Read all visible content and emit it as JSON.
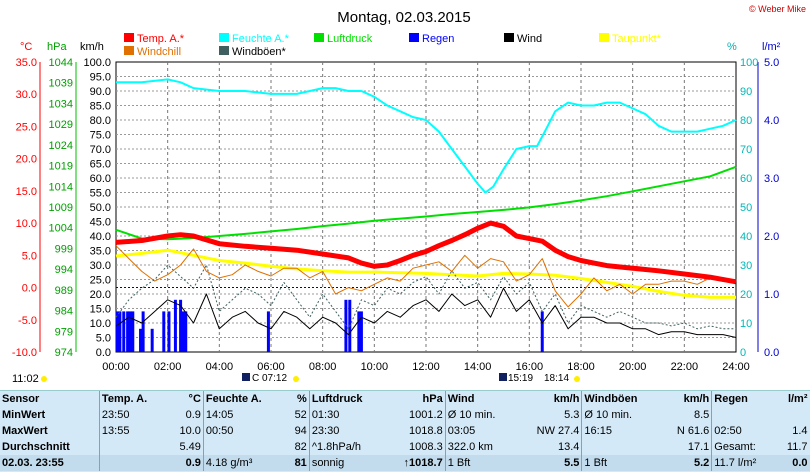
{
  "title": "Montag, 02.03.2015",
  "copyright": "© Weber Mike",
  "legend": [
    {
      "label": "Temp. A.*",
      "color": "#ff0000",
      "row": 0,
      "col": 0
    },
    {
      "label": "Feuchte A.*",
      "color": "#00ffff",
      "row": 0,
      "col": 1
    },
    {
      "label": "Luftdruck",
      "color": "#00e000",
      "row": 0,
      "col": 2
    },
    {
      "label": "Regen",
      "color": "#0000ff",
      "row": 0,
      "col": 3
    },
    {
      "label": "Wind",
      "color": "#000000",
      "row": 0,
      "col": 4
    },
    {
      "label": "Taupunkt*",
      "color": "#ffff00",
      "row": 0,
      "col": 5
    },
    {
      "label": "Windchill",
      "color": "#e07000",
      "row": 1,
      "col": 0
    },
    {
      "label": "Windböen*",
      "color": "#406060",
      "row": 1,
      "col": 1
    }
  ],
  "axis_units": {
    "temp": "°C",
    "pressure": "hPa",
    "wind": "km/h",
    "humidity": "%",
    "rain": "l/m²"
  },
  "sun_info": {
    "sunrise_label": "11:02",
    "marker1": "C 07:12",
    "marker2": "15:19",
    "marker3": "18:14"
  },
  "chart_data": {
    "type": "line",
    "title": "Montag, 02.03.2015",
    "x_ticks": [
      "00:00",
      "02:00",
      "04:00",
      "06:00",
      "08:00",
      "10:00",
      "12:00",
      "14:00",
      "16:00",
      "18:00",
      "20:00",
      "22:00",
      "24:00"
    ],
    "xlim": [
      0,
      24
    ],
    "axes": {
      "temp": {
        "unit": "°C",
        "lim": [
          -10,
          35
        ],
        "ticks": [
          "35.0",
          "30.0",
          "25.0",
          "20.0",
          "15.0",
          "10.0",
          "5.0",
          "0.0",
          "-5.0",
          "-10.0"
        ]
      },
      "pressure": {
        "unit": "hPa",
        "lim": [
          974,
          1044
        ],
        "ticks": [
          "1044",
          "1039",
          "1034",
          "1029",
          "1024",
          "1019",
          "1014",
          "1009",
          "1004",
          "999",
          "994",
          "989",
          "984",
          "979",
          "974"
        ]
      },
      "wind": {
        "unit": "km/h",
        "lim": [
          0,
          100
        ],
        "ticks": [
          "100.0",
          "95.0",
          "90.0",
          "85.0",
          "80.0",
          "75.0",
          "70.0",
          "65.0",
          "60.0",
          "55.0",
          "50.0",
          "45.0",
          "40.0",
          "35.0",
          "30.0",
          "25.0",
          "20.0",
          "15.0",
          "10.0",
          "5.0",
          "0.0"
        ]
      },
      "humidity": {
        "unit": "%",
        "lim": [
          0,
          100
        ],
        "ticks": [
          "100",
          "90",
          "80",
          "70",
          "60",
          "50",
          "40",
          "30",
          "20",
          "10",
          "0"
        ]
      },
      "rain": {
        "unit": "l/m²",
        "lim": [
          0,
          5
        ],
        "ticks": [
          "5.0",
          "4.0",
          "3.0",
          "2.0",
          "1.0",
          "0.0"
        ]
      }
    },
    "series": [
      {
        "name": "Feuchte A.*",
        "axis": "humidity",
        "color": "#00ffff",
        "width": 2,
        "x": [
          0,
          1,
          2,
          2.5,
          3,
          4,
          5,
          6,
          7,
          7.5,
          8,
          8.5,
          9,
          9.5,
          10,
          10.5,
          11,
          11.5,
          12,
          12.5,
          13,
          13.5,
          14,
          14.3,
          14.6,
          15,
          15.5,
          16,
          16.3,
          16.6,
          17,
          17.5,
          18,
          18.5,
          19,
          19.5,
          20,
          20.5,
          21,
          21.5,
          22,
          22.5,
          23,
          23.5,
          24
        ],
        "y": [
          93,
          93,
          94,
          93,
          91,
          90,
          90,
          89,
          89,
          90,
          91,
          91,
          90,
          90,
          88,
          85,
          83,
          81,
          80,
          76,
          70,
          64,
          58,
          55,
          57,
          63,
          70,
          71,
          71,
          76,
          83,
          86,
          85,
          85,
          86,
          86,
          84,
          82,
          78,
          76,
          76,
          76,
          77,
          78,
          80
        ]
      },
      {
        "name": "Luftdruck",
        "axis": "pressure",
        "color": "#00e000",
        "width": 2,
        "x": [
          0,
          1,
          2,
          3,
          4,
          5,
          6,
          7,
          8,
          9,
          10,
          11,
          12,
          13,
          14,
          15,
          16,
          17,
          18,
          19,
          20,
          21,
          22,
          23,
          24
        ],
        "y": [
          1003.5,
          1001.4,
          1001.2,
          1001.5,
          1002.0,
          1002.5,
          1003.1,
          1003.7,
          1004.4,
          1005.0,
          1005.7,
          1006.2,
          1006.7,
          1007.3,
          1007.8,
          1008.3,
          1008.9,
          1009.7,
          1010.6,
          1011.6,
          1012.8,
          1014.0,
          1015.2,
          1016.4,
          1018.7
        ]
      },
      {
        "name": "Taupunkt*",
        "axis": "temp",
        "color": "#ffff00",
        "width": 3,
        "x": [
          0,
          1,
          2,
          3,
          4,
          5,
          6,
          7,
          8,
          9,
          10,
          11,
          12,
          13,
          14,
          15,
          16,
          17,
          18,
          19,
          20,
          21,
          22,
          23,
          24
        ],
        "y": [
          4.9,
          5.3,
          5.8,
          5.0,
          4.2,
          3.8,
          3.3,
          2.9,
          2.6,
          2.4,
          2.4,
          2.3,
          2.2,
          2.0,
          1.8,
          2.2,
          2.1,
          1.9,
          1.4,
          0.8,
          0.2,
          -0.6,
          -1.2,
          -1.5,
          -1.5
        ]
      },
      {
        "name": "Windchill",
        "axis": "temp",
        "color": "#e07000",
        "width": 1,
        "x": [
          0,
          0.5,
          1,
          1.5,
          2,
          2.5,
          3,
          3.5,
          4,
          4.5,
          5,
          5.5,
          6,
          6.5,
          7,
          7.5,
          8,
          8.5,
          9,
          9.5,
          10,
          10.5,
          11,
          11.5,
          12,
          12.5,
          13,
          13.5,
          14,
          14.5,
          15,
          15.5,
          16,
          16.5,
          17,
          17.5,
          18,
          18.5,
          19,
          19.5,
          20,
          20.5,
          21,
          21.5,
          22,
          22.5,
          23,
          23.5,
          24
        ],
        "y": [
          6.5,
          4.5,
          2.5,
          1.0,
          2.0,
          3.5,
          6.0,
          2.5,
          1.5,
          2.0,
          3.5,
          2.5,
          1.8,
          3.0,
          3.0,
          1.5,
          2.5,
          -1.0,
          0.0,
          -0.5,
          0.5,
          1.5,
          1.0,
          3.0,
          3.5,
          4.0,
          2.5,
          5.0,
          3.0,
          4.5,
          4.0,
          1.0,
          2.0,
          4.5,
          -0.5,
          -3.0,
          -1.0,
          1.5,
          -0.5,
          0.5,
          -1.0,
          0.5,
          0.5,
          1.0,
          1.0,
          0.5,
          1.5,
          1.0,
          0.8
        ]
      },
      {
        "name": "Windböen*",
        "axis": "wind",
        "color": "#406060",
        "width": 1,
        "dash": "2,2",
        "x": [
          0,
          0.5,
          1,
          1.5,
          2,
          2.5,
          3,
          3.5,
          4,
          4.5,
          5,
          5.5,
          6,
          6.5,
          7,
          7.5,
          8,
          8.5,
          9,
          9.5,
          10,
          10.5,
          11,
          11.5,
          12,
          12.5,
          13,
          13.5,
          14,
          14.5,
          15,
          15.5,
          16,
          16.5,
          17,
          17.5,
          18,
          18.5,
          19,
          19.5,
          20,
          20.5,
          21,
          21.5,
          22,
          22.5,
          23,
          23.5,
          24
        ],
        "y": [
          12,
          18,
          22,
          25,
          30,
          26,
          22,
          30,
          14,
          18,
          22,
          20,
          16,
          24,
          18,
          12,
          20,
          14,
          8,
          18,
          16,
          22,
          20,
          24,
          26,
          20,
          28,
          22,
          24,
          18,
          26,
          20,
          24,
          14,
          20,
          10,
          16,
          14,
          12,
          14,
          12,
          10,
          10,
          9,
          10,
          8,
          9,
          8,
          8
        ]
      },
      {
        "name": "Wind",
        "axis": "wind",
        "color": "#000000",
        "width": 1,
        "x": [
          0,
          0.5,
          1,
          1.5,
          2,
          2.5,
          3,
          3.5,
          4,
          4.5,
          5,
          5.5,
          6,
          6.5,
          7,
          7.5,
          8,
          8.5,
          9,
          9.5,
          10,
          10.5,
          11,
          11.5,
          12,
          12.5,
          13,
          13.5,
          14,
          14.5,
          15,
          15.5,
          16,
          16.5,
          17,
          17.5,
          18,
          18.5,
          19,
          19.5,
          20,
          20.5,
          21,
          21.5,
          22,
          22.5,
          23,
          23.5,
          24
        ],
        "y": [
          9,
          12,
          10,
          14,
          18,
          16,
          10,
          20,
          8,
          12,
          14,
          10,
          8,
          14,
          12,
          8,
          12,
          10,
          6,
          12,
          10,
          14,
          12,
          16,
          18,
          14,
          20,
          16,
          18,
          12,
          22,
          14,
          18,
          10,
          16,
          8,
          12,
          12,
          10,
          10,
          8,
          8,
          6,
          7,
          7,
          6,
          6,
          6,
          5
        ]
      },
      {
        "name": "Temp. A.*",
        "axis": "temp",
        "color": "#ff0000",
        "width": 5,
        "x": [
          0,
          1,
          2,
          2.5,
          3,
          4,
          5,
          6,
          7,
          8,
          9,
          9.5,
          10,
          10.5,
          11,
          11.5,
          12,
          12.5,
          13,
          13.5,
          14,
          14.5,
          15,
          15.5,
          16,
          16.5,
          17,
          17.5,
          18,
          18.5,
          19,
          20,
          21,
          22,
          23,
          24
        ],
        "y": [
          7.0,
          7.3,
          8.0,
          8.2,
          8.0,
          6.8,
          6.4,
          6.1,
          5.8,
          5.2,
          4.6,
          3.8,
          3.3,
          3.5,
          4.2,
          5.0,
          5.6,
          6.5,
          7.3,
          8.2,
          9.2,
          10.0,
          9.5,
          8.0,
          7.6,
          7.2,
          5.8,
          4.8,
          4.2,
          3.8,
          3.4,
          3.0,
          2.6,
          2.1,
          1.6,
          0.9
        ]
      }
    ],
    "rain_bars": {
      "axis": "rain",
      "x": [
        0.05,
        0.15,
        0.3,
        0.45,
        0.55,
        0.65,
        0.95,
        1.05,
        1.4,
        1.85,
        2.05,
        2.3,
        2.5,
        2.6,
        2.7,
        5.9,
        8.9,
        9.05,
        9.4,
        9.5,
        16.5
      ],
      "y": [
        0.7,
        0.7,
        0.7,
        0.7,
        0.7,
        0.7,
        0.4,
        0.7,
        0.4,
        0.7,
        0.7,
        0.9,
        0.9,
        0.7,
        0.7,
        0.7,
        0.9,
        0.9,
        0.7,
        0.7,
        0.7
      ]
    },
    "reference_line": {
      "axis": "temp",
      "value": 0,
      "color": "#0000aa"
    }
  },
  "stats": {
    "headers": [
      "Sensor",
      "Temp. A.",
      "°C",
      "Feuchte A.",
      "%",
      "Luftdruck",
      "hPa",
      "Wind",
      "km/h",
      "Windböen",
      "km/h",
      "Regen",
      "l/m²"
    ],
    "rows": [
      [
        "MinWert",
        "23:50",
        "0.9",
        "14:05",
        "52",
        "01:30",
        "1001.2",
        "Ø 10 min.",
        "5.3",
        "Ø 10 min.",
        "8.5",
        "",
        ""
      ],
      [
        "MaxWert",
        "13:55",
        "10.0",
        "00:50",
        "94",
        "23:30",
        "1018.8",
        "03:05",
        "NW 27.4",
        "16:15",
        "N 61.6",
        "02:50",
        "1.4"
      ],
      [
        "Durchschnitt",
        "",
        "5.49",
        "",
        "82",
        "^1.8hPa/h",
        "1008.3",
        "322.0 km",
        "13.4",
        "",
        "17.1",
        "Gesamt:",
        "11.7"
      ],
      [
        "02.03. 23:55",
        "",
        "0.9",
        "4.18 g/m³",
        "81",
        "sonnig",
        "↑1018.7",
        "1 Bft",
        "5.5",
        "1 Bft",
        "5.2",
        "11.7 l/m²",
        "0.0"
      ]
    ]
  }
}
